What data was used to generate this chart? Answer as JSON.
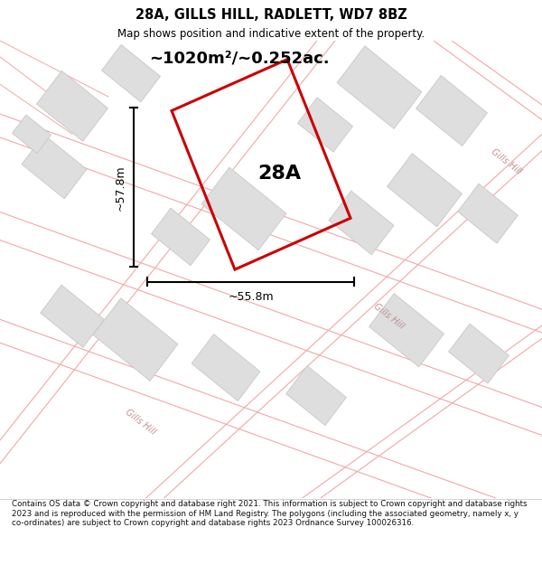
{
  "title_line1": "28A, GILLS HILL, RADLETT, WD7 8BZ",
  "title_line2": "Map shows position and indicative extent of the property.",
  "area_text": "~1020m²/~0.252ac.",
  "label_28A": "28A",
  "dim_height": "~57.8m",
  "dim_width": "~55.8m",
  "road_label": "Gills Hill",
  "copyright_text": "Contains OS data © Crown copyright and database right 2021. This information is subject to Crown copyright and database rights 2023 and is reproduced with the permission of HM Land Registry. The polygons (including the associated geometry, namely x, y co-ordinates) are subject to Crown copyright and database rights 2023 Ordnance Survey 100026316.",
  "bg_color": "#f2f0ef",
  "plot_color": "#cc0000",
  "road_line_color": "#f0a8a8",
  "building_fill": "#dedede",
  "building_edge": "#c8c8c8",
  "title_bg": "#ffffff",
  "copy_bg": "#ffffff"
}
